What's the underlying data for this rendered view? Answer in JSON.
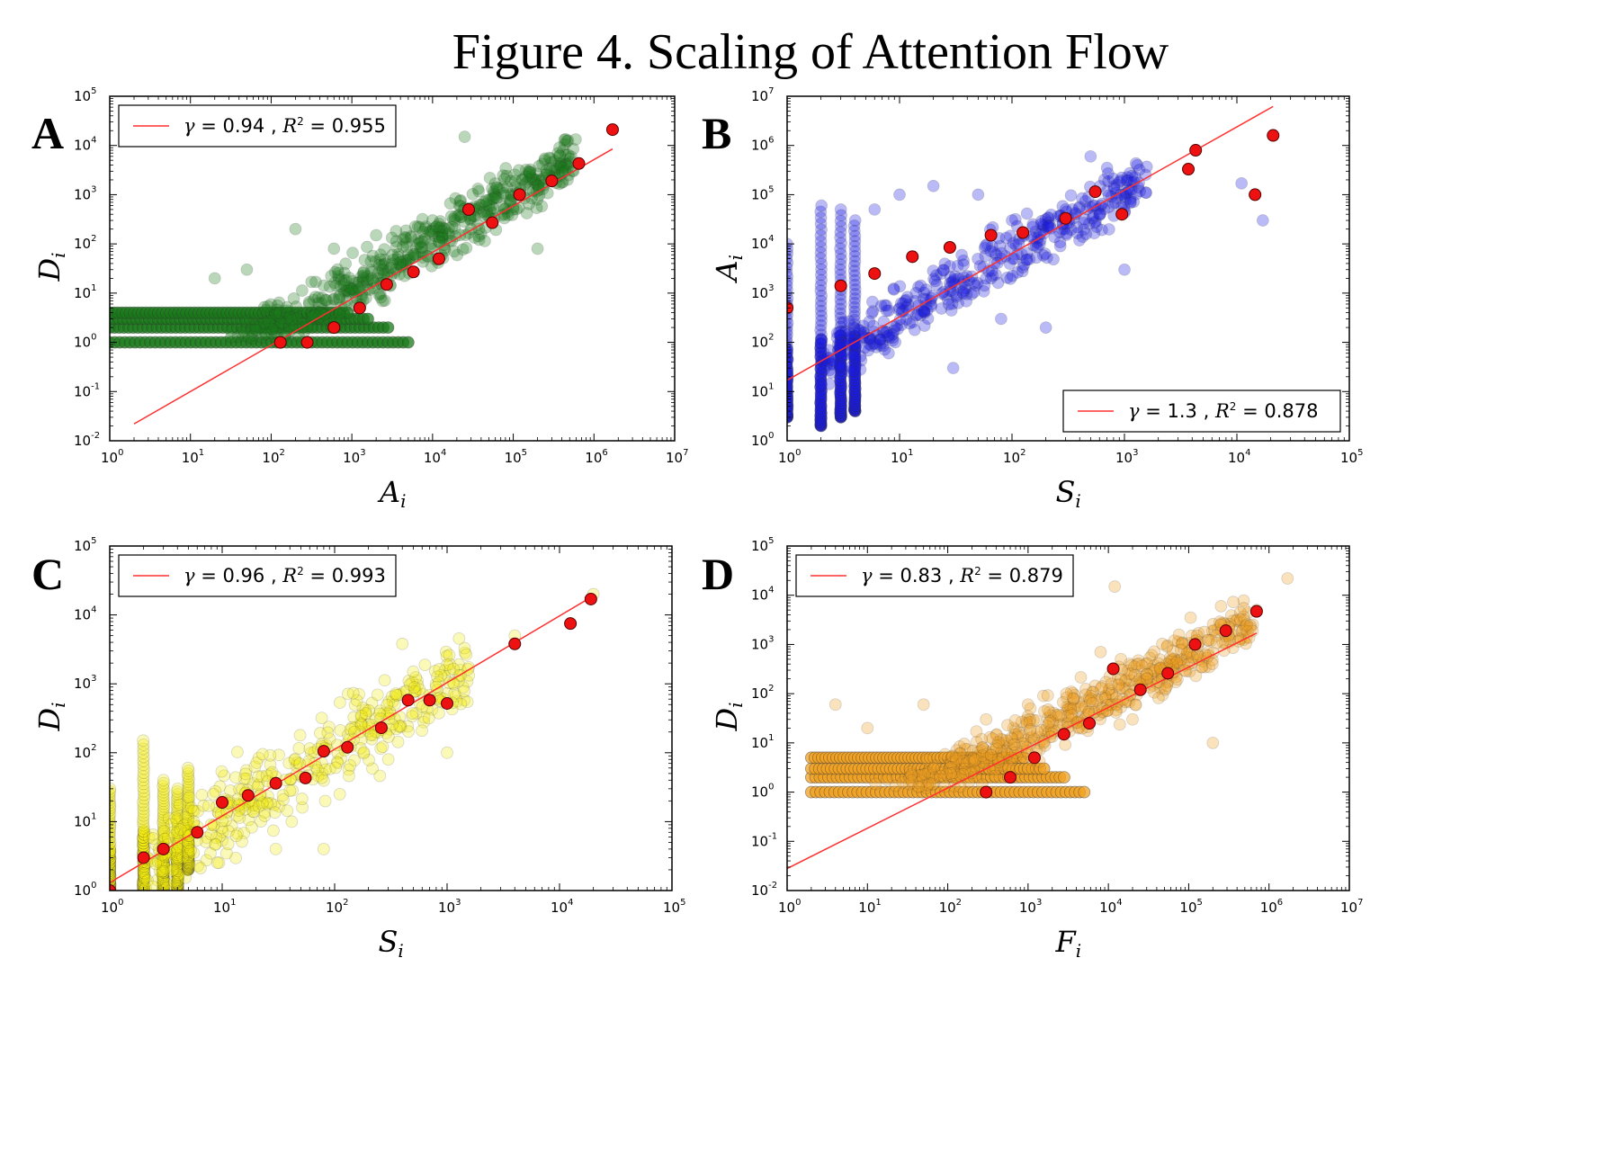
{
  "figure_title": "Figure 4. Scaling of Attention Flow",
  "chart_data": [
    {
      "panel": "A",
      "type": "scatter",
      "xlabel": "A",
      "xlabel_sub": "i",
      "ylabel": "D",
      "ylabel_sub": "i",
      "xscale": "log",
      "yscale": "log",
      "xlim_exp": [
        0,
        7
      ],
      "ylim_exp": [
        -2,
        5
      ],
      "legend": {
        "gamma": "0.94",
        "r2": "0.955",
        "loc": "upper-left"
      },
      "point_color": "#1a7a1a",
      "fit": {
        "x_from": 2,
        "x_to": 1700000,
        "y_from": 0.022,
        "y_to": 8500
      },
      "binned_points": [
        [
          130,
          1
        ],
        [
          280,
          1
        ],
        [
          600,
          2
        ],
        [
          1250,
          5
        ],
        [
          2700,
          15
        ],
        [
          5800,
          27
        ],
        [
          12000,
          50
        ],
        [
          28000,
          500
        ],
        [
          55000,
          270
        ],
        [
          120000,
          1000
        ],
        [
          300000,
          1900
        ],
        [
          650000,
          4300
        ],
        [
          1700000,
          21000
        ]
      ],
      "scatter": {
        "band_x": [
          1,
          5000
        ],
        "band_ys": [
          1,
          2,
          3,
          4
        ],
        "cloud": [
          [
            20,
            20
          ],
          [
            50,
            30
          ],
          [
            200,
            200
          ],
          [
            600,
            80
          ],
          [
            2000,
            150
          ],
          [
            5000,
            60
          ],
          [
            10000,
            300
          ],
          [
            30000,
            200
          ],
          [
            60000,
            900
          ],
          [
            100000,
            500
          ],
          [
            200000,
            80
          ],
          [
            25000,
            15000
          ],
          [
            160000,
            2800
          ],
          [
            1500,
            8
          ],
          [
            800,
            15
          ]
        ]
      }
    },
    {
      "panel": "B",
      "type": "scatter",
      "xlabel": "S",
      "xlabel_sub": "i",
      "ylabel": "A",
      "ylabel_sub": "i",
      "xscale": "log",
      "yscale": "log",
      "xlim_exp": [
        0,
        5
      ],
      "ylim_exp": [
        0,
        7
      ],
      "legend": {
        "gamma": "1.3",
        "r2": "0.878",
        "loc": "lower-right"
      },
      "point_color": "#1a1ae0",
      "fit": {
        "x_from": 1,
        "x_to": 21000,
        "y_from": 17,
        "y_to": 6200000
      },
      "binned_points": [
        [
          1,
          500
        ],
        [
          3,
          1400
        ],
        [
          6,
          2500
        ],
        [
          13,
          5500
        ],
        [
          28,
          8500
        ],
        [
          65,
          15000
        ],
        [
          125,
          17000
        ],
        [
          300,
          33000
        ],
        [
          550,
          115000
        ],
        [
          950,
          40000
        ],
        [
          3700,
          330000
        ],
        [
          4300,
          800000
        ],
        [
          14500,
          100000
        ],
        [
          21000,
          1600000
        ]
      ],
      "scatter": {
        "columns": [
          [
            1,
            3,
            10000
          ],
          [
            2,
            2,
            60000
          ],
          [
            3,
            3,
            50000
          ],
          [
            4,
            4,
            30000
          ]
        ],
        "cloud": [
          [
            6,
            50000
          ],
          [
            10,
            100000
          ],
          [
            20,
            150000
          ],
          [
            50,
            100000
          ],
          [
            100,
            30000
          ],
          [
            200,
            200
          ],
          [
            300,
            50000
          ],
          [
            500,
            600000
          ],
          [
            700,
            350000
          ],
          [
            1000,
            3000
          ],
          [
            11000,
            170000
          ],
          [
            17000,
            30000
          ],
          [
            8,
            60
          ],
          [
            30,
            30
          ],
          [
            80,
            300
          ]
        ]
      }
    },
    {
      "panel": "C",
      "type": "scatter",
      "xlabel": "S",
      "xlabel_sub": "i",
      "ylabel": "D",
      "ylabel_sub": "i",
      "xscale": "log",
      "yscale": "log",
      "xlim_exp": [
        0,
        5
      ],
      "ylim_exp": [
        0,
        5
      ],
      "legend": {
        "gamma": "0.96",
        "r2": "0.993",
        "loc": "upper-left"
      },
      "point_color": "#f2ea10",
      "fit": {
        "x_from": 1,
        "x_to": 19000,
        "y_from": 1.3,
        "y_to": 18000
      },
      "binned_points": [
        [
          1,
          1
        ],
        [
          2,
          3
        ],
        [
          3,
          4
        ],
        [
          6,
          7
        ],
        [
          10,
          19
        ],
        [
          17,
          24
        ],
        [
          30,
          36
        ],
        [
          55,
          43
        ],
        [
          80,
          105
        ],
        [
          130,
          120
        ],
        [
          260,
          230
        ],
        [
          450,
          580
        ],
        [
          700,
          580
        ],
        [
          1000,
          520
        ],
        [
          4000,
          3800
        ],
        [
          12500,
          7500
        ],
        [
          19000,
          17000
        ]
      ],
      "scatter": {
        "columns": [
          [
            1,
            1,
            30
          ],
          [
            2,
            1,
            150
          ],
          [
            3,
            1,
            40
          ],
          [
            4,
            1,
            30
          ],
          [
            5,
            2,
            60
          ]
        ],
        "cloud": [
          [
            30,
            4
          ],
          [
            80,
            4
          ],
          [
            400,
            3800
          ],
          [
            500,
            1500
          ],
          [
            800,
            900
          ],
          [
            1000,
            100
          ],
          [
            4000,
            5000
          ],
          [
            20000,
            20000
          ],
          [
            300,
            80
          ],
          [
            150,
            200
          ]
        ]
      }
    },
    {
      "panel": "D",
      "type": "scatter",
      "xlabel": "F",
      "xlabel_sub": "i",
      "ylabel": "D",
      "ylabel_sub": "i",
      "xscale": "log",
      "yscale": "log",
      "xlim_exp": [
        0,
        7
      ],
      "ylim_exp": [
        -2,
        5
      ],
      "legend": {
        "gamma": "0.83",
        "r2": "0.879",
        "loc": "upper-left"
      },
      "point_color": "#f0a020",
      "fit": {
        "x_from": 1,
        "x_to": 700000,
        "y_from": 0.028,
        "y_to": 1700
      },
      "binned_points": [
        [
          300,
          1
        ],
        [
          600,
          2
        ],
        [
          1200,
          5
        ],
        [
          2800,
          15
        ],
        [
          5800,
          25
        ],
        [
          11500,
          320
        ],
        [
          25000,
          120
        ],
        [
          55000,
          260
        ],
        [
          120000,
          1000
        ],
        [
          290000,
          1900
        ],
        [
          700000,
          4700
        ]
      ],
      "scatter": {
        "band_x": [
          2,
          5000
        ],
        "band_ys": [
          1,
          2,
          3,
          5
        ],
        "cloud": [
          [
            4,
            60
          ],
          [
            10,
            20
          ],
          [
            50,
            60
          ],
          [
            300,
            30
          ],
          [
            1000,
            60
          ],
          [
            3000,
            100
          ],
          [
            12000,
            15000
          ],
          [
            30000,
            200
          ],
          [
            100000,
            400
          ],
          [
            200000,
            10
          ],
          [
            700000,
            5000
          ],
          [
            1700000,
            22000
          ],
          [
            20000,
            30
          ],
          [
            8000,
            700
          ]
        ]
      }
    }
  ]
}
